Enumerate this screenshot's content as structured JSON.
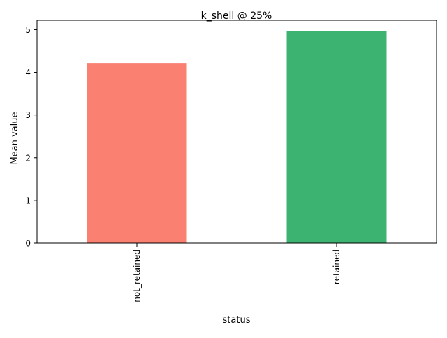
{
  "chart_data": {
    "type": "bar",
    "title": "k_shell @ 25%",
    "xlabel": "status",
    "ylabel": "Mean value",
    "categories": [
      "not_retained",
      "retained"
    ],
    "values": [
      4.22,
      4.97
    ],
    "colors": [
      "#fa8072",
      "#3cb371"
    ],
    "ylim": [
      0,
      5.22
    ],
    "yticks": [
      0,
      1,
      2,
      3,
      4,
      5
    ],
    "grid": false,
    "legend": "none"
  }
}
